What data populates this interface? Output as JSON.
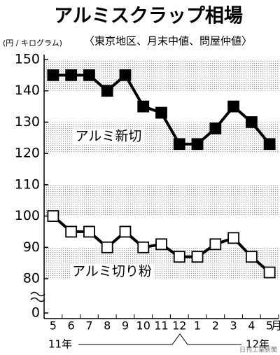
{
  "chart_data": {
    "type": "line",
    "title": "アルミスクラップ相場",
    "subtitle": "〈東京地区、月末中値、問屋仲値〉",
    "y_label": "(円 / キログラム)",
    "categories": [
      "5",
      "6",
      "7",
      "8",
      "9",
      "10",
      "11",
      "12",
      "1",
      "2",
      "3",
      "4",
      "5"
    ],
    "month_unit": "月",
    "year_labels": [
      "11年",
      "12年"
    ],
    "series": [
      {
        "name": "アルミ新切",
        "color": "#000000",
        "marker": "filled",
        "values": [
          145,
          145,
          145,
          140,
          145,
          135,
          133,
          123,
          123,
          128,
          135,
          130,
          123
        ]
      },
      {
        "name": "アルミ切り粉",
        "color": "#000000",
        "marker": "open",
        "values": [
          100,
          95,
          95,
          90,
          95,
          90,
          91,
          87,
          87,
          91,
          93,
          87,
          82
        ]
      }
    ],
    "ylim": [
      80,
      150
    ],
    "yticks": [
      0,
      80,
      90,
      100,
      110,
      120,
      130,
      140,
      150
    ],
    "axis_break": true,
    "shaded_bands": [
      [
        140,
        150
      ],
      [
        120,
        130
      ],
      [
        100,
        110
      ],
      [
        80,
        90
      ]
    ],
    "credit": "日刊工業新聞"
  }
}
